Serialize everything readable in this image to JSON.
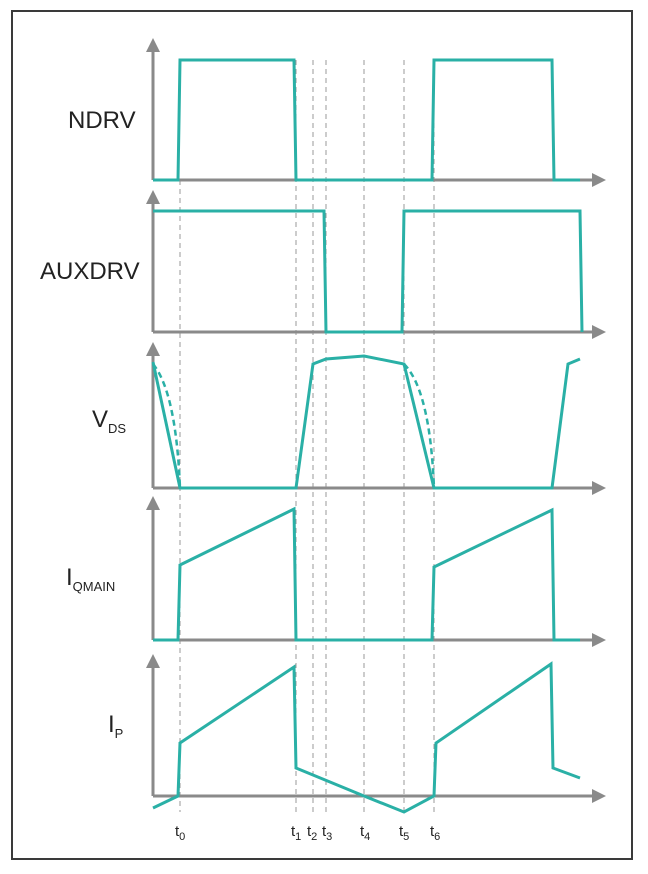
{
  "colors": {
    "signal": "#2ab0a6",
    "axis": "#8a8a8a",
    "guide": "#9a9a9a",
    "frame": "#3a3a3a"
  },
  "labels": {
    "ndrv": "NDRV",
    "auxdrv": "AUXDRV",
    "vds_main": "V",
    "vds_sub": "DS",
    "iq_main": "I",
    "iq_sub": "QMAIN",
    "ip_main": "I",
    "ip_sub": "P"
  },
  "time_labels": [
    {
      "main": "t",
      "sub": "0"
    },
    {
      "main": "t",
      "sub": "1"
    },
    {
      "main": "t",
      "sub": "2"
    },
    {
      "main": "t",
      "sub": "3"
    },
    {
      "main": "t",
      "sub": "4"
    },
    {
      "main": "t",
      "sub": "5"
    },
    {
      "main": "t",
      "sub": "6"
    }
  ]
}
